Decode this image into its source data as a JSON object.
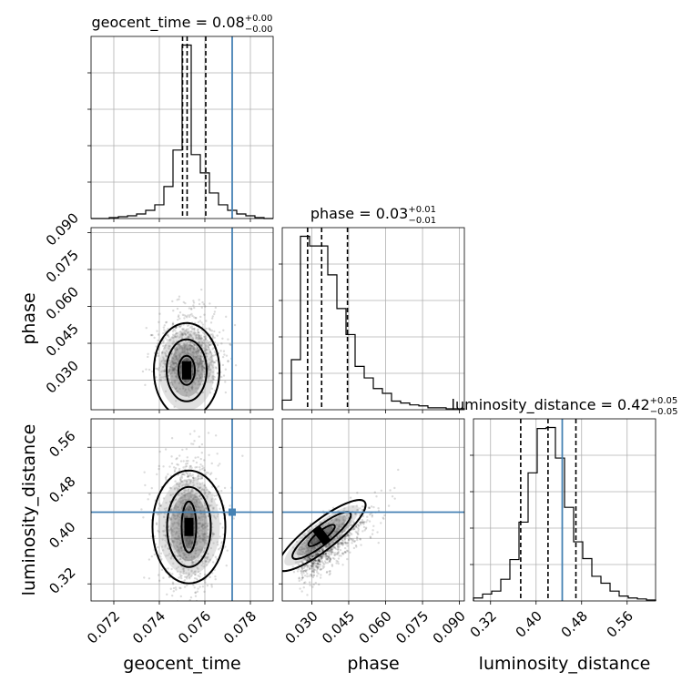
{
  "chart_data": {
    "type": "corner",
    "parameters": [
      "geocent_time",
      "phase",
      "luminosity_distance"
    ],
    "axis_labels": [
      "geocent_time",
      "phase",
      "luminosity_distance"
    ],
    "ranges": [
      [
        0.071,
        0.079
      ],
      [
        0.018,
        0.092
      ],
      [
        0.29,
        0.61
      ]
    ],
    "ticks": [
      {
        "values": [
          0.072,
          0.074,
          0.076,
          0.078
        ],
        "labels": [
          "0.072",
          "0.074",
          "0.076",
          "0.078"
        ]
      },
      {
        "values": [
          0.03,
          0.045,
          0.06,
          0.075,
          0.09
        ],
        "labels": [
          "0.030",
          "0.045",
          "0.060",
          "0.075",
          "0.090"
        ]
      },
      {
        "values": [
          0.32,
          0.4,
          0.48,
          0.56
        ],
        "labels": [
          "0.32",
          "0.40",
          "0.48",
          "0.56"
        ]
      }
    ],
    "titles": [
      {
        "name": "geocent_time",
        "median": "0.08",
        "upper": "+0.00",
        "lower": "−0.00"
      },
      {
        "name": "phase",
        "median": "0.03",
        "upper": "+0.01",
        "lower": "−0.01"
      },
      {
        "name": "luminosity_distance",
        "median": "0.42",
        "upper": "+0.05",
        "lower": "−0.05"
      }
    ],
    "truths": [
      0.0772,
      null,
      0.446
    ],
    "truth_color": "#4682b4",
    "quantiles": [
      [
        0.07502,
        0.07522,
        0.07604
      ],
      [
        0.0283,
        0.034,
        0.0445
      ],
      [
        0.373,
        0.421,
        0.47
      ]
    ],
    "histograms": [
      {
        "bin_edges": [
          0.071,
          0.0714,
          0.0718,
          0.0722,
          0.0726,
          0.073,
          0.0734,
          0.0738,
          0.0742,
          0.0746,
          0.075,
          0.0754,
          0.0758,
          0.0762,
          0.0766,
          0.077,
          0.0774,
          0.0778,
          0.0782,
          0.0786,
          0.079
        ],
        "counts": [
          0,
          0,
          1,
          2,
          3,
          5,
          9,
          15,
          35,
          75,
          190,
          70,
          50,
          28,
          15,
          9,
          5,
          3,
          1,
          0
        ]
      },
      {
        "bin_edges": [
          0.018,
          0.0217,
          0.0254,
          0.0291,
          0.0328,
          0.0365,
          0.0402,
          0.0439,
          0.0476,
          0.0513,
          0.055,
          0.0587,
          0.0624,
          0.0661,
          0.0698,
          0.0735,
          0.0772,
          0.0809,
          0.0846,
          0.0883,
          0.092
        ],
        "counts": [
          10,
          52,
          180,
          170,
          170,
          140,
          105,
          78,
          45,
          33,
          22,
          17,
          9,
          7,
          5,
          4,
          2,
          2,
          1,
          1
        ]
      },
      {
        "bin_edges": [
          0.29,
          0.306,
          0.322,
          0.338,
          0.354,
          0.37,
          0.386,
          0.402,
          0.418,
          0.434,
          0.45,
          0.466,
          0.482,
          0.498,
          0.514,
          0.53,
          0.546,
          0.562,
          0.578,
          0.594,
          0.61
        ],
        "counts": [
          3,
          7,
          10,
          22,
          42,
          80,
          130,
          175,
          176,
          145,
          95,
          60,
          43,
          25,
          18,
          10,
          5,
          3,
          2,
          1
        ]
      }
    ],
    "grid": true
  }
}
